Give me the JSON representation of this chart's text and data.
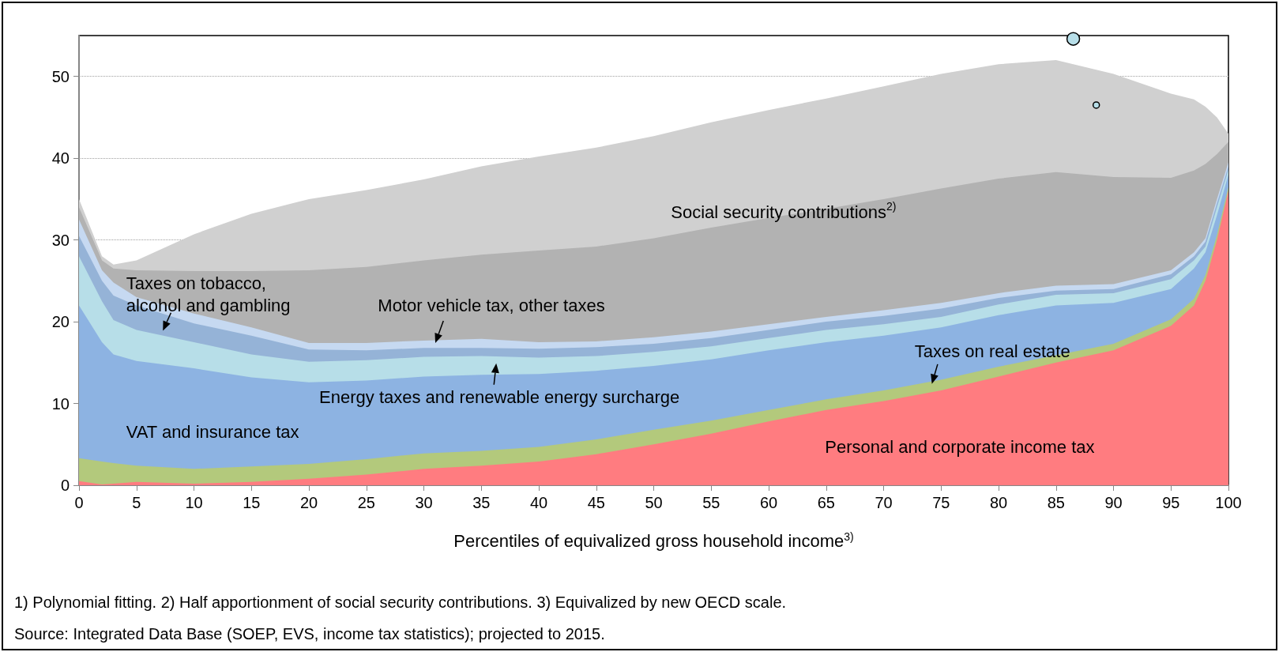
{
  "chart_data": {
    "type": "area",
    "stacked": true,
    "grid": "y",
    "marker": "none",
    "xlabel": "Percentiles of equivalized gross household income$^{3)}$",
    "x": [
      0,
      2,
      3,
      5,
      10,
      15,
      20,
      25,
      30,
      35,
      40,
      45,
      50,
      55,
      60,
      65,
      70,
      75,
      80,
      85,
      90,
      95,
      97,
      98,
      99,
      100
    ],
    "xlim": [
      0,
      100
    ],
    "xticks": [
      0,
      5,
      10,
      15,
      20,
      25,
      30,
      35,
      40,
      45,
      50,
      55,
      60,
      65,
      70,
      75,
      80,
      85,
      90,
      95,
      100
    ],
    "ylim": [
      0,
      55
    ],
    "yticks": [
      0,
      10,
      20,
      30,
      40,
      50
    ],
    "series": [
      {
        "color": "#ff7c80",
        "values": [
          0.5,
          0.1,
          0.2,
          0.4,
          0.2,
          0.4,
          0.8,
          1.3,
          2.0,
          2.4,
          2.9,
          3.8,
          5.0,
          6.3,
          7.8,
          9.2,
          10.3,
          11.6,
          13.3,
          15.0,
          16.5,
          19.5,
          22,
          25,
          30,
          36
        ]
      },
      {
        "color": "#b3c97c",
        "values": [
          2.8,
          2.8,
          2.5,
          2.0,
          1.8,
          1.9,
          1.8,
          1.9,
          1.9,
          1.8,
          1.8,
          1.8,
          1.8,
          1.6,
          1.4,
          1.3,
          1.3,
          1.3,
          1.2,
          0.9,
          0.8,
          0.8,
          0.8,
          0.7,
          0.6,
          0.5
        ]
      },
      {
        "color": "#8db3e2",
        "values": [
          18.7,
          14.6,
          13.3,
          12.8,
          12.3,
          10.9,
          10.0,
          9.6,
          9.4,
          9.3,
          8.9,
          8.4,
          7.8,
          7.5,
          7.3,
          7.0,
          6.7,
          6.4,
          6.3,
          6.1,
          5.0,
          3.7,
          3.7,
          2.8,
          2.4,
          1.5
        ]
      },
      {
        "color": "#b7dee8",
        "values": [
          6,
          5,
          4.2,
          3.8,
          3.2,
          2.8,
          2.5,
          2.5,
          2.4,
          2.3,
          2.0,
          1.8,
          1.7,
          1.6,
          1.5,
          1.5,
          1.4,
          1.3,
          1.3,
          1.3,
          1.2,
          1.2,
          1.0,
          0.7,
          1.0,
          0.6
        ]
      },
      {
        "color": "#95b3d7",
        "values": [
          2.5,
          2.5,
          3.0,
          3.0,
          2.3,
          2.3,
          1.5,
          1.2,
          1.1,
          1.0,
          1.1,
          1.1,
          1.0,
          1.0,
          1.0,
          1.0,
          1.0,
          1.0,
          0.8,
          0.5,
          0.5,
          0.6,
          0.5,
          0.6,
          0.5,
          0.4
        ]
      },
      {
        "color": "#c6d9f1",
        "values": [
          2.0,
          1.3,
          1.6,
          1.0,
          1.2,
          1.0,
          0.8,
          0.9,
          0.9,
          1.1,
          0.8,
          0.7,
          0.8,
          0.8,
          0.7,
          0.6,
          0.7,
          0.7,
          0.6,
          0.6,
          0.6,
          0.5,
          0.5,
          0.4,
          0.5,
          0.5
        ]
      },
      {
        "color": "#b2b2b2",
        "values": [
          1.5,
          1.2,
          1.7,
          3.3,
          5.2,
          6.9,
          8.9,
          9.3,
          9.8,
          10.3,
          11.2,
          11.6,
          12.1,
          12.7,
          13.0,
          13.2,
          13.6,
          14.0,
          14.0,
          13.9,
          13.1,
          11.3,
          10.0,
          9.1,
          5.5,
          2.5
        ]
      },
      {
        "color": "#d0d0d0",
        "values": [
          1.0,
          0.5,
          0.5,
          1.2,
          4.5,
          7.0,
          8.7,
          9.4,
          9.9,
          10.8,
          11.5,
          12.1,
          12.5,
          12.9,
          13.2,
          13.5,
          13.8,
          14.0,
          14.0,
          13.7,
          12.6,
          10.3,
          8.7,
          7.0,
          4.5,
          1.0
        ]
      }
    ],
    "annotations": [
      "Taxes on tobacco,\nalcohol and gambling",
      "Motor vehicle tax, other taxes",
      "Social security contributions$^{2)}$",
      "Taxes on real estate",
      "Energy taxes and renewable energy surcharge",
      "VAT and insurance tax",
      "Personal and corporate income tax",
      "1) Polynomial fitting. 2) Half apportionment of social security contributions. 3) Equivalized by new OECD scale.",
      "Source: Integrated Data Base (SOEP, EVS, income tax statistics); projected to 2015."
    ]
  }
}
